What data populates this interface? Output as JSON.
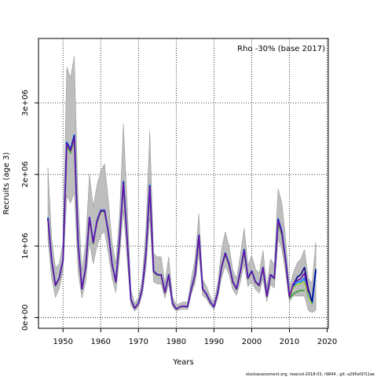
{
  "chart_data": {
    "type": "line",
    "title": "",
    "annotation": "Rho -30% (base 2017)",
    "xlabel": "Years",
    "ylabel": "Recruits (age 3)",
    "xlim": [
      1943.5,
      2020.3
    ],
    "ylim": [
      -150000,
      3900000
    ],
    "xticks": [
      1950,
      1960,
      1970,
      1980,
      1990,
      2000,
      2010,
      2020
    ],
    "yticks": [
      0,
      1000000,
      2000000,
      3000000
    ],
    "ytick_labels": [
      "0e+00",
      "1e+06",
      "2e+06",
      "3e+06"
    ],
    "grid": "dotted",
    "footer": "stockassessment.org, neacod-2018-03, r9844 , git: a295ef2f11ae",
    "colors": {
      "band": "#bebebe",
      "band_edge": "#8c8c8c",
      "base": "#1f8bff",
      "peels": [
        "#2ca02c",
        "#00008b",
        "#9acd32",
        "#6a0dad"
      ]
    },
    "base": {
      "x": [
        1946,
        1947,
        1948,
        1949,
        1950,
        1951,
        1952,
        1953,
        1954,
        1955,
        1956,
        1957,
        1958,
        1959,
        1960,
        1961,
        1962,
        1963,
        1964,
        1965,
        1966,
        1967,
        1968,
        1969,
        1970,
        1971,
        1972,
        1973,
        1974,
        1975,
        1976,
        1977,
        1978,
        1979,
        1980,
        1981,
        1982,
        1983,
        1984,
        1985,
        1986,
        1987,
        1988,
        1989,
        1990,
        1991,
        1992,
        1993,
        1994,
        1995,
        1996,
        1997,
        1998,
        1999,
        2000,
        2001,
        2002,
        2003,
        2004,
        2005,
        2006,
        2007,
        2008,
        2009,
        2010,
        2011,
        2012,
        2013,
        2014,
        2015,
        2016,
        2017
      ],
      "values": [
        1400000,
        800000,
        450000,
        550000,
        800000,
        2450000,
        2350000,
        2550000,
        1050000,
        400000,
        700000,
        1400000,
        1050000,
        1350000,
        1500000,
        1500000,
        1200000,
        750000,
        500000,
        1100000,
        1900000,
        1100000,
        250000,
        130000,
        200000,
        400000,
        900000,
        1850000,
        650000,
        600000,
        600000,
        350000,
        600000,
        200000,
        120000,
        150000,
        160000,
        150000,
        400000,
        600000,
        1150000,
        400000,
        330000,
        220000,
        150000,
        350000,
        700000,
        900000,
        750000,
        500000,
        400000,
        650000,
        950000,
        550000,
        650000,
        500000,
        450000,
        700000,
        300000,
        600000,
        550000,
        1380000,
        1200000,
        800000,
        300000,
        430000,
        500000,
        500000,
        550000,
        300000,
        200000,
        650000
      ]
    },
    "band": {
      "x": [
        1946,
        1947,
        1948,
        1949,
        1950,
        1951,
        1952,
        1953,
        1954,
        1955,
        1956,
        1957,
        1958,
        1959,
        1960,
        1961,
        1962,
        1963,
        1964,
        1965,
        1966,
        1967,
        1968,
        1969,
        1970,
        1971,
        1972,
        1973,
        1974,
        1975,
        1976,
        1977,
        1978,
        1979,
        1980,
        1981,
        1982,
        1983,
        1984,
        1985,
        1986,
        1987,
        1988,
        1989,
        1990,
        1991,
        1992,
        1993,
        1994,
        1995,
        1996,
        1997,
        1998,
        1999,
        2000,
        2001,
        2002,
        2003,
        2004,
        2005,
        2006,
        2007,
        2008,
        2009,
        2010,
        2011,
        2012,
        2013,
        2014,
        2015,
        2016,
        2017
      ],
      "lower": [
        1100000,
        550000,
        280000,
        400000,
        650000,
        1700000,
        1600000,
        1750000,
        650000,
        270000,
        500000,
        1050000,
        750000,
        1000000,
        1150000,
        1200000,
        900000,
        550000,
        350000,
        850000,
        1500000,
        800000,
        170000,
        90000,
        140000,
        320000,
        700000,
        1400000,
        500000,
        470000,
        470000,
        270000,
        470000,
        150000,
        90000,
        110000,
        120000,
        110000,
        330000,
        480000,
        900000,
        310000,
        260000,
        170000,
        110000,
        270000,
        550000,
        720000,
        600000,
        390000,
        310000,
        500000,
        750000,
        430000,
        500000,
        390000,
        340000,
        540000,
        220000,
        460000,
        410000,
        1100000,
        950000,
        620000,
        220000,
        300000,
        300000,
        300000,
        300000,
        100000,
        70000,
        100000
      ],
      "upper": [
        2100000,
        1100000,
        700000,
        750000,
        1050000,
        3500000,
        3350000,
        3650000,
        1650000,
        650000,
        1050000,
        2000000,
        1550000,
        1850000,
        2050000,
        2150000,
        1650000,
        1050000,
        750000,
        1450000,
        2700000,
        1600000,
        380000,
        200000,
        280000,
        550000,
        1250000,
        2600000,
        900000,
        850000,
        850000,
        480000,
        850000,
        290000,
        180000,
        200000,
        220000,
        210000,
        540000,
        820000,
        1450000,
        530000,
        440000,
        300000,
        210000,
        480000,
        950000,
        1200000,
        1000000,
        670000,
        540000,
        880000,
        1250000,
        730000,
        870000,
        680000,
        620000,
        940000,
        420000,
        820000,
        740000,
        1800000,
        1600000,
        1100000,
        420000,
        620000,
        760000,
        820000,
        950000,
        550000,
        480000,
        1050000
      ]
    },
    "series": [
      {
        "x": [
          1946,
          1947,
          1948,
          1949,
          1950,
          1951,
          1952,
          1953,
          1954,
          1955,
          1956,
          1957,
          1958,
          1959,
          1960,
          1961,
          1962,
          1963,
          1964,
          1965,
          1966,
          1967,
          1968,
          1969,
          1970,
          1971,
          1972,
          1973,
          1974,
          1975,
          1976,
          1977,
          1978,
          1979,
          1980,
          1981,
          1982,
          1983,
          1984,
          1985,
          1986,
          1987,
          1988,
          1989,
          1990,
          1991,
          1992,
          1993,
          1994,
          1995,
          1996,
          1997,
          1998,
          1999,
          2000,
          2001,
          2002,
          2003,
          2004,
          2005,
          2006,
          2007,
          2008,
          2009,
          2010,
          2011,
          2012,
          2013,
          2014
        ],
        "values": [
          1360000,
          790000,
          440000,
          540000,
          790000,
          2400000,
          2300000,
          2480000,
          1030000,
          400000,
          690000,
          1380000,
          1030000,
          1330000,
          1480000,
          1480000,
          1180000,
          740000,
          490000,
          1080000,
          1860000,
          1080000,
          245000,
          128000,
          196000,
          395000,
          890000,
          1800000,
          640000,
          590000,
          590000,
          345000,
          590000,
          197000,
          118000,
          148000,
          158000,
          148000,
          395000,
          590000,
          1130000,
          395000,
          325000,
          215000,
          148000,
          345000,
          690000,
          880000,
          735000,
          490000,
          392000,
          640000,
          910000,
          540000,
          640000,
          490000,
          440000,
          690000,
          295000,
          590000,
          540000,
          1320000,
          1150000,
          760000,
          270000,
          330000,
          360000,
          380000,
          380000
        ]
      },
      {
        "x": [
          1946,
          1947,
          1948,
          1949,
          1950,
          1951,
          1952,
          1953,
          1954,
          1955,
          1956,
          1957,
          1958,
          1959,
          1960,
          1961,
          1962,
          1963,
          1964,
          1965,
          1966,
          1967,
          1968,
          1969,
          1970,
          1971,
          1972,
          1973,
          1974,
          1975,
          1976,
          1977,
          1978,
          1979,
          1980,
          1981,
          1982,
          1983,
          1984,
          1985,
          1986,
          1987,
          1988,
          1989,
          1990,
          1991,
          1992,
          1993,
          1994,
          1995,
          1996,
          1997,
          1998,
          1999,
          2000,
          2001,
          2002,
          2003,
          2004,
          2005,
          2006,
          2007,
          2008,
          2009,
          2010,
          2011,
          2012,
          2013,
          2014,
          2015,
          2016,
          2017
        ],
        "values": [
          1390000,
          800000,
          450000,
          550000,
          800000,
          2440000,
          2340000,
          2540000,
          1045000,
          400000,
          700000,
          1400000,
          1050000,
          1350000,
          1495000,
          1495000,
          1195000,
          748000,
          498000,
          1098000,
          1890000,
          1098000,
          248000,
          130000,
          199000,
          400000,
          898000,
          1840000,
          648000,
          598000,
          598000,
          348000,
          598000,
          199000,
          120000,
          150000,
          160000,
          150000,
          399000,
          599000,
          1148000,
          399000,
          329000,
          219000,
          150000,
          349000,
          699000,
          898000,
          748000,
          499000,
          399000,
          649000,
          945000,
          549000,
          649000,
          499000,
          449000,
          699000,
          299000,
          599000,
          549000,
          1370000,
          1190000,
          790000,
          290000,
          450000,
          560000,
          600000,
          700000,
          400000,
          220000,
          680000
        ]
      },
      {
        "x": [
          1946,
          1947,
          1948,
          1949,
          1950,
          1951,
          1952,
          1953,
          1954,
          1955,
          1956,
          1957,
          1958,
          1959,
          1960,
          1961,
          1962,
          1963,
          1964,
          1965,
          1966,
          1967,
          1968,
          1969,
          1970,
          1971,
          1972,
          1973,
          1974,
          1975,
          1976,
          1977,
          1978,
          1979,
          1980,
          1981,
          1982,
          1983,
          1984,
          1985,
          1986,
          1987,
          1988,
          1989,
          1990,
          1991,
          1992,
          1993,
          1994,
          1995,
          1996,
          1997,
          1998,
          1999,
          2000,
          2001,
          2002,
          2003,
          2004,
          2005,
          2006,
          2007,
          2008,
          2009,
          2010,
          2011,
          2012,
          2013,
          2014,
          2015,
          2016
        ],
        "values": [
          1370000,
          795000,
          445000,
          545000,
          795000,
          2420000,
          2320000,
          2500000,
          1040000,
          400000,
          695000,
          1390000,
          1040000,
          1340000,
          1490000,
          1490000,
          1190000,
          745000,
          495000,
          1090000,
          1870000,
          1090000,
          247000,
          129000,
          198000,
          398000,
          895000,
          1820000,
          645000,
          595000,
          595000,
          347000,
          595000,
          198000,
          119000,
          149000,
          159000,
          149000,
          397000,
          595000,
          1140000,
          397000,
          327000,
          217000,
          149000,
          347000,
          695000,
          890000,
          742000,
          495000,
          396000,
          645000,
          930000,
          545000,
          645000,
          495000,
          445000,
          695000,
          297000,
          595000,
          545000,
          1350000,
          1170000,
          780000,
          280000,
          420000,
          460000,
          480000,
          500000,
          300000,
          180000
        ]
      },
      {
        "x": [
          1946,
          1947,
          1948,
          1949,
          1950,
          1951,
          1952,
          1953,
          1954,
          1955,
          1956,
          1957,
          1958,
          1959,
          1960,
          1961,
          1962,
          1963,
          1964,
          1965,
          1966,
          1967,
          1968,
          1969,
          1970,
          1971,
          1972,
          1973,
          1974,
          1975,
          1976,
          1977,
          1978,
          1979,
          1980,
          1981,
          1982,
          1983,
          1984,
          1985,
          1986,
          1987,
          1988,
          1989,
          1990,
          1991,
          1992,
          1993,
          1994,
          1995,
          1996,
          1997,
          1998,
          1999,
          2000,
          2001,
          2002,
          2003,
          2004,
          2005,
          2006,
          2007,
          2008,
          2009,
          2010,
          2011,
          2012,
          2013,
          2014,
          2015
        ],
        "values": [
          1380000,
          798000,
          448000,
          548000,
          798000,
          2430000,
          2330000,
          2520000,
          1043000,
          400000,
          698000,
          1395000,
          1045000,
          1345000,
          1492000,
          1492000,
          1192000,
          746000,
          496000,
          1094000,
          1880000,
          1094000,
          248000,
          130000,
          199000,
          399000,
          896000,
          1830000,
          646000,
          596000,
          596000,
          348000,
          596000,
          199000,
          120000,
          150000,
          160000,
          150000,
          398000,
          597000,
          1144000,
          398000,
          328000,
          218000,
          150000,
          348000,
          697000,
          894000,
          745000,
          497000,
          398000,
          647000,
          938000,
          547000,
          647000,
          497000,
          447000,
          697000,
          298000,
          597000,
          547000,
          1360000,
          1180000,
          785000,
          285000,
          470000,
          520000,
          540000,
          620000,
          350000
        ]
      }
    ]
  }
}
